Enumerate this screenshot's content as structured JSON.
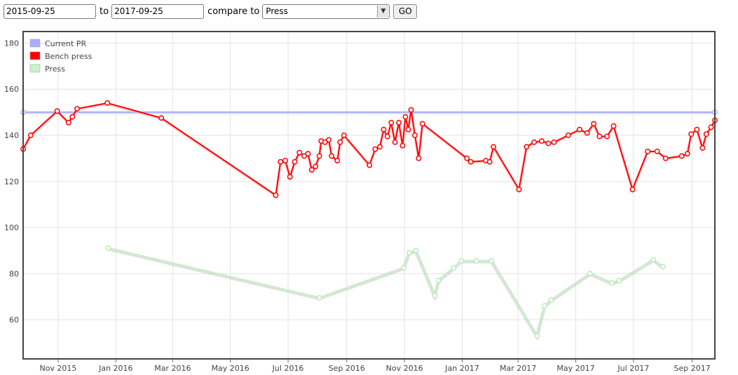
{
  "controls": {
    "from_date": "2015-09-25",
    "to_label": "to",
    "to_date": "2017-09-25",
    "compare_label": "compare to",
    "compare_selected": "Press",
    "go_label": "GO"
  },
  "colors": {
    "current_pr": "#aab0ff",
    "bench_press": "#ff0000",
    "press": "#c6f5c6",
    "grid": "#e3e3e3",
    "frame": "#444444"
  },
  "chart_data": {
    "type": "line",
    "xlim": [
      "2015-09-25",
      "2017-09-25"
    ],
    "ylim": [
      43,
      185
    ],
    "x_ticks": [
      {
        "date": "2015-11-01",
        "label": "Nov 2015"
      },
      {
        "date": "2016-01-01",
        "label": "Jan 2016"
      },
      {
        "date": "2016-03-01",
        "label": "Mar 2016"
      },
      {
        "date": "2016-05-01",
        "label": "May 2016"
      },
      {
        "date": "2016-07-01",
        "label": "Jul 2016"
      },
      {
        "date": "2016-09-01",
        "label": "Sep 2016"
      },
      {
        "date": "2016-11-01",
        "label": "Nov 2016"
      },
      {
        "date": "2017-01-01",
        "label": "Jan 2017"
      },
      {
        "date": "2017-03-01",
        "label": "Mar 2017"
      },
      {
        "date": "2017-05-01",
        "label": "May 2017"
      },
      {
        "date": "2017-07-01",
        "label": "Jul 2017"
      },
      {
        "date": "2017-09-01",
        "label": "Sep 2017"
      }
    ],
    "y_ticks": [
      60,
      80,
      100,
      120,
      140,
      160,
      180
    ],
    "grid": true,
    "legend_position": "top-left",
    "series": [
      {
        "name": "Current PR",
        "color": "#aab0ff",
        "points": [
          [
            "2015-09-25",
            150
          ],
          [
            "2017-09-25",
            150
          ]
        ]
      },
      {
        "name": "Bench press",
        "color": "#ff0000",
        "points": [
          [
            "2015-09-25",
            134
          ],
          [
            "2015-10-03",
            140
          ],
          [
            "2015-10-31",
            150.5
          ],
          [
            "2015-11-12",
            145.5
          ],
          [
            "2015-11-16",
            148
          ],
          [
            "2015-11-21",
            151.5
          ],
          [
            "2015-12-23",
            154
          ],
          [
            "2016-02-18",
            147.5
          ],
          [
            "2016-06-18",
            114
          ],
          [
            "2016-06-23",
            128.5
          ],
          [
            "2016-06-28",
            129
          ],
          [
            "2016-07-03",
            122
          ],
          [
            "2016-07-08",
            128.5
          ],
          [
            "2016-07-13",
            132.5
          ],
          [
            "2016-07-18",
            131
          ],
          [
            "2016-07-22",
            132
          ],
          [
            "2016-07-26",
            125
          ],
          [
            "2016-07-30",
            126.5
          ],
          [
            "2016-08-03",
            131
          ],
          [
            "2016-08-05",
            137.5
          ],
          [
            "2016-08-09",
            137
          ],
          [
            "2016-08-13",
            138
          ],
          [
            "2016-08-16",
            131
          ],
          [
            "2016-08-22",
            129
          ],
          [
            "2016-08-25",
            137
          ],
          [
            "2016-08-29",
            140
          ],
          [
            "2016-09-25",
            127
          ],
          [
            "2016-10-01",
            134
          ],
          [
            "2016-10-06",
            135
          ],
          [
            "2016-10-10",
            142.5
          ],
          [
            "2016-10-14",
            139.5
          ],
          [
            "2016-10-18",
            145.5
          ],
          [
            "2016-10-22",
            137
          ],
          [
            "2016-10-26",
            145.5
          ],
          [
            "2016-10-30",
            135.5
          ],
          [
            "2016-11-02",
            148
          ],
          [
            "2016-11-05",
            142.5
          ],
          [
            "2016-11-08",
            151
          ],
          [
            "2016-11-12",
            140
          ],
          [
            "2016-11-16",
            130
          ],
          [
            "2016-11-20",
            145
          ],
          [
            "2017-01-06",
            130
          ],
          [
            "2017-01-10",
            128.5
          ],
          [
            "2017-01-26",
            129
          ],
          [
            "2017-01-30",
            128.5
          ],
          [
            "2017-02-03",
            135
          ],
          [
            "2017-03-02",
            116.5
          ],
          [
            "2017-03-10",
            135
          ],
          [
            "2017-03-18",
            137
          ],
          [
            "2017-03-26",
            137.5
          ],
          [
            "2017-04-02",
            136.5
          ],
          [
            "2017-04-08",
            137
          ],
          [
            "2017-04-23",
            140
          ],
          [
            "2017-05-05",
            142.5
          ],
          [
            "2017-05-13",
            141
          ],
          [
            "2017-05-20",
            145
          ],
          [
            "2017-05-26",
            139.5
          ],
          [
            "2017-06-03",
            139.5
          ],
          [
            "2017-06-10",
            144
          ],
          [
            "2017-06-30",
            116.5
          ],
          [
            "2017-07-16",
            133
          ],
          [
            "2017-07-26",
            133
          ],
          [
            "2017-08-04",
            130
          ],
          [
            "2017-08-21",
            131
          ],
          [
            "2017-08-27",
            132
          ],
          [
            "2017-08-31",
            140.5
          ],
          [
            "2017-09-06",
            142.5
          ],
          [
            "2017-09-12",
            134.5
          ],
          [
            "2017-09-16",
            140.5
          ],
          [
            "2017-09-21",
            143.5
          ],
          [
            "2017-09-25",
            146.5
          ]
        ]
      },
      {
        "name": "Press",
        "color": "#c6f5c6",
        "points": [
          [
            "2015-12-24",
            91
          ],
          [
            "2016-08-03",
            69.5
          ],
          [
            "2016-10-31",
            82.5
          ],
          [
            "2016-11-06",
            89
          ],
          [
            "2016-11-13",
            90
          ],
          [
            "2016-12-03",
            70.5
          ],
          [
            "2016-12-07",
            77
          ],
          [
            "2016-12-23",
            82.5
          ],
          [
            "2016-12-31",
            85.5
          ],
          [
            "2017-01-16",
            85.5
          ],
          [
            "2017-02-01",
            85.5
          ],
          [
            "2017-03-21",
            53
          ],
          [
            "2017-03-29",
            66
          ],
          [
            "2017-04-05",
            68.5
          ],
          [
            "2017-05-16",
            80
          ],
          [
            "2017-06-08",
            76
          ],
          [
            "2017-06-16",
            77
          ],
          [
            "2017-07-22",
            86
          ],
          [
            "2017-08-01",
            83
          ]
        ]
      }
    ]
  }
}
